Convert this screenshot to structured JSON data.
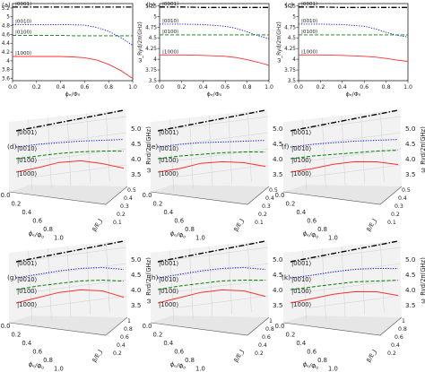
{
  "figure": {
    "caption_labels": {
      "a": "(a)",
      "b": "(b)",
      "c": "(c)",
      "d": "(d)",
      "e": "(e)",
      "f": "(f)",
      "g": "(g)",
      "h": "(h)",
      "k": "(k)"
    }
  },
  "chart_data": [
    {
      "panel": "a",
      "type": "line",
      "title": "(a)",
      "xlabel": "ϕₑ/Φ₀",
      "ylabel": "ω_Ryd/2π(GHz)",
      "xlim": [
        0.0,
        1.0
      ],
      "ylim": [
        3.55,
        5.3
      ],
      "xticks": [
        0.0,
        0.2,
        0.4,
        0.6,
        0.8,
        1.0
      ],
      "yticks": [
        3.6,
        3.8,
        4.0,
        4.2,
        4.4,
        4.6,
        4.8,
        5.0,
        5.2
      ],
      "series": [
        {
          "name": "|0001⟩",
          "color": "#000000",
          "style": "dashdot",
          "x": [
            0,
            0.2,
            0.4,
            0.6,
            0.8,
            1.0
          ],
          "values": [
            5.22,
            5.22,
            5.22,
            5.22,
            5.22,
            5.22
          ]
        },
        {
          "name": "|0010⟩",
          "color": "#0000ff",
          "style": "dotted",
          "x": [
            0,
            0.2,
            0.4,
            0.5,
            0.6,
            0.7,
            0.8,
            0.9,
            1.0
          ],
          "values": [
            4.82,
            4.82,
            4.82,
            4.82,
            4.81,
            4.76,
            4.67,
            4.53,
            4.35
          ]
        },
        {
          "name": "|0100⟩",
          "color": "#008000",
          "style": "dashed",
          "x": [
            0,
            0.2,
            0.4,
            0.5,
            0.6,
            0.8,
            1.0
          ],
          "values": [
            4.58,
            4.58,
            4.58,
            4.57,
            4.57,
            4.57,
            4.57
          ]
        },
        {
          "name": "|1000⟩",
          "color": "#ff3030",
          "style": "solid",
          "x": [
            0,
            0.2,
            0.4,
            0.5,
            0.6,
            0.7,
            0.8,
            0.9,
            1.0
          ],
          "values": [
            4.1,
            4.1,
            4.1,
            4.09,
            4.07,
            4.02,
            3.92,
            3.78,
            3.6
          ]
        }
      ]
    },
    {
      "panel": "b",
      "type": "line",
      "title": "(b)",
      "xlabel": "ϕₑ/Φ₀",
      "ylabel": "ω_Ryd/2π(GHz)",
      "xlim": [
        0.0,
        1.0
      ],
      "ylim": [
        3.5,
        5.3
      ],
      "xticks": [
        0.0,
        0.2,
        0.4,
        0.6,
        0.8,
        1.0
      ],
      "yticks": [
        3.5,
        3.75,
        4.0,
        4.25,
        4.5,
        4.75,
        5.0,
        5.25
      ],
      "series": [
        {
          "name": "|0001⟩",
          "color": "#000000",
          "style": "dashdot",
          "x": [
            0,
            0.2,
            0.4,
            0.6,
            0.8,
            1.0
          ],
          "values": [
            5.22,
            5.22,
            5.21,
            5.21,
            5.21,
            5.21
          ]
        },
        {
          "name": "|0010⟩",
          "color": "#0000ff",
          "style": "dotted",
          "x": [
            0,
            0.2,
            0.4,
            0.6,
            0.7,
            0.8,
            0.9,
            1.0
          ],
          "values": [
            4.82,
            4.82,
            4.81,
            4.77,
            4.72,
            4.64,
            4.55,
            4.48
          ]
        },
        {
          "name": "|0100⟩",
          "color": "#008000",
          "style": "dashed",
          "x": [
            0,
            0.2,
            0.4,
            0.6,
            0.8,
            1.0
          ],
          "values": [
            4.57,
            4.57,
            4.57,
            4.57,
            4.57,
            4.57
          ]
        },
        {
          "name": "|1000⟩",
          "color": "#ff3030",
          "style": "solid",
          "x": [
            0,
            0.2,
            0.4,
            0.6,
            0.7,
            0.8,
            0.9,
            1.0
          ],
          "values": [
            4.1,
            4.1,
            4.09,
            4.07,
            4.04,
            3.99,
            3.93,
            3.86
          ]
        }
      ]
    },
    {
      "panel": "c",
      "type": "line",
      "title": "(c)",
      "xlabel": "ϕₑ/Φ₀",
      "ylabel": "ω_Ryd/2π(GHz)",
      "xlim": [
        0.0,
        1.0
      ],
      "ylim": [
        3.5,
        5.3
      ],
      "xticks": [
        0.0,
        0.2,
        0.4,
        0.6,
        0.8,
        1.0
      ],
      "yticks": [
        3.5,
        3.75,
        4.0,
        4.25,
        4.5,
        4.75,
        5.0,
        5.25
      ],
      "series": [
        {
          "name": "|0001⟩",
          "color": "#000000",
          "style": "dashdot",
          "x": [
            0,
            0.2,
            0.4,
            0.6,
            0.8,
            1.0
          ],
          "values": [
            5.22,
            5.22,
            5.21,
            5.21,
            5.21,
            5.21
          ]
        },
        {
          "name": "|0010⟩",
          "color": "#0000ff",
          "style": "dotted",
          "x": [
            0,
            0.2,
            0.4,
            0.6,
            0.7,
            0.8,
            0.9,
            1.0
          ],
          "values": [
            4.82,
            4.82,
            4.81,
            4.77,
            4.71,
            4.63,
            4.56,
            4.52
          ]
        },
        {
          "name": "|0100⟩",
          "color": "#008000",
          "style": "dashed",
          "x": [
            0,
            0.2,
            0.4,
            0.6,
            0.8,
            1.0
          ],
          "values": [
            4.57,
            4.57,
            4.57,
            4.57,
            4.57,
            4.57
          ]
        },
        {
          "name": "|1000⟩",
          "color": "#ff3030",
          "style": "solid",
          "x": [
            0,
            0.2,
            0.4,
            0.6,
            0.7,
            0.8,
            0.9,
            1.0
          ],
          "values": [
            4.1,
            4.1,
            4.09,
            4.07,
            4.05,
            4.02,
            3.98,
            3.95
          ]
        }
      ]
    },
    {
      "panel": "d",
      "type": "line",
      "title": "(d)",
      "xlabel": "ϕₑ/Φ₀",
      "ylabel": "β/E_J",
      "zlabel": "ω_Ryd/2π(GHz)",
      "xticks": [
        0.0,
        0.2,
        0.4,
        0.6,
        0.8,
        1.0
      ],
      "yticks": [
        0.1,
        0.2,
        0.3,
        0.4,
        0.5
      ],
      "zticks": [
        3.5,
        4.0,
        4.5,
        5.0
      ],
      "series": [
        {
          "name": "|0001⟩",
          "color": "#000000",
          "style": "dashdot"
        },
        {
          "name": "|0010⟩",
          "color": "#0000ff",
          "style": "dotted"
        },
        {
          "name": "|0100⟩",
          "color": "#008000",
          "style": "dashed"
        },
        {
          "name": "|1000⟩",
          "color": "#ff3030",
          "style": "solid"
        }
      ]
    },
    {
      "panel": "e",
      "type": "line",
      "title": "(e)",
      "xlabel": "ϕₑ/Φ₀",
      "ylabel": "β/E_J",
      "zlabel": "ω_Ryd/2π(GHz)",
      "xticks": [
        0.0,
        0.2,
        0.4,
        0.6,
        0.8,
        1.0
      ],
      "yticks": [
        0.1,
        0.2,
        0.3,
        0.4,
        0.5
      ],
      "zticks": [
        3.5,
        4.0,
        4.5,
        5.0
      ],
      "series": [
        {
          "name": "|0001⟩",
          "color": "#000000",
          "style": "dashdot"
        },
        {
          "name": "|0010⟩",
          "color": "#0000ff",
          "style": "dotted"
        },
        {
          "name": "|0100⟩",
          "color": "#008000",
          "style": "dashed"
        },
        {
          "name": "|1000⟩",
          "color": "#ff3030",
          "style": "solid"
        }
      ]
    },
    {
      "panel": "f",
      "type": "line",
      "title": "(f)",
      "xlabel": "ϕₑ/Φ₀",
      "ylabel": "β/E_J",
      "zlabel": "ω_Ryd/2π(GHz)",
      "xticks": [
        0.0,
        0.2,
        0.4,
        0.6,
        0.8,
        1.0
      ],
      "yticks": [
        0.1,
        0.2,
        0.3,
        0.4,
        0.5
      ],
      "zticks": [
        3.5,
        4.0,
        4.5,
        5.0
      ],
      "series": [
        {
          "name": "|0001⟩",
          "color": "#000000",
          "style": "dashdot"
        },
        {
          "name": "|0010⟩",
          "color": "#0000ff",
          "style": "dotted"
        },
        {
          "name": "|0100⟩",
          "color": "#008000",
          "style": "dashed"
        },
        {
          "name": "|1000⟩",
          "color": "#ff3030",
          "style": "solid"
        }
      ]
    },
    {
      "panel": "g",
      "type": "line",
      "title": "(g)",
      "xlabel": "ϕₑ/Φ₀",
      "ylabel": "β/E_J",
      "zlabel": "ω_Ryd/2π(GHz)",
      "xticks": [
        0.0,
        0.2,
        0.4,
        0.6,
        0.8,
        1.0
      ],
      "yticks": [
        0.2,
        0.4,
        0.6,
        0.8,
        1.0
      ],
      "zticks": [
        3.5,
        4.0,
        4.5,
        5.0
      ],
      "series": [
        {
          "name": "|0001⟩",
          "color": "#000000",
          "style": "dashdot"
        },
        {
          "name": "|0010⟩",
          "color": "#0000ff",
          "style": "dotted"
        },
        {
          "name": "|0100⟩",
          "color": "#008000",
          "style": "dashed"
        },
        {
          "name": "|1000⟩",
          "color": "#ff3030",
          "style": "solid"
        }
      ]
    },
    {
      "panel": "h",
      "type": "line",
      "title": "(h)",
      "xlabel": "ϕₑ/Φ₀",
      "ylabel": "β/E_J",
      "zlabel": "ω_Ryd/2π(GHz)",
      "xticks": [
        0.0,
        0.2,
        0.4,
        0.6,
        0.8,
        1.0
      ],
      "yticks": [
        0.2,
        0.4,
        0.6,
        0.8,
        1.0
      ],
      "zticks": [
        3.5,
        4.0,
        4.5,
        5.0
      ],
      "series": [
        {
          "name": "|0001⟩",
          "color": "#000000",
          "style": "dashdot"
        },
        {
          "name": "|0010⟩",
          "color": "#0000ff",
          "style": "dotted"
        },
        {
          "name": "|0100⟩",
          "color": "#008000",
          "style": "dashed"
        },
        {
          "name": "|1000⟩",
          "color": "#ff3030",
          "style": "solid"
        }
      ]
    },
    {
      "panel": "k",
      "type": "line",
      "title": "(k)",
      "xlabel": "ϕₑ/Φ₀",
      "ylabel": "β/E_J",
      "zlabel": "ω_Ryd/2π(GHz)",
      "xticks": [
        0.0,
        0.2,
        0.4,
        0.6,
        0.8,
        1.0
      ],
      "yticks": [
        0.2,
        0.4,
        0.6,
        0.8,
        1.0
      ],
      "zticks": [
        3.5,
        4.0,
        4.5,
        5.0
      ],
      "series": [
        {
          "name": "|0001⟩",
          "color": "#000000",
          "style": "dashdot"
        },
        {
          "name": "|0010⟩",
          "color": "#0000ff",
          "style": "dotted"
        },
        {
          "name": "|0100⟩",
          "color": "#008000",
          "style": "dashed"
        },
        {
          "name": "|1000⟩",
          "color": "#ff3030",
          "style": "solid"
        }
      ]
    }
  ]
}
